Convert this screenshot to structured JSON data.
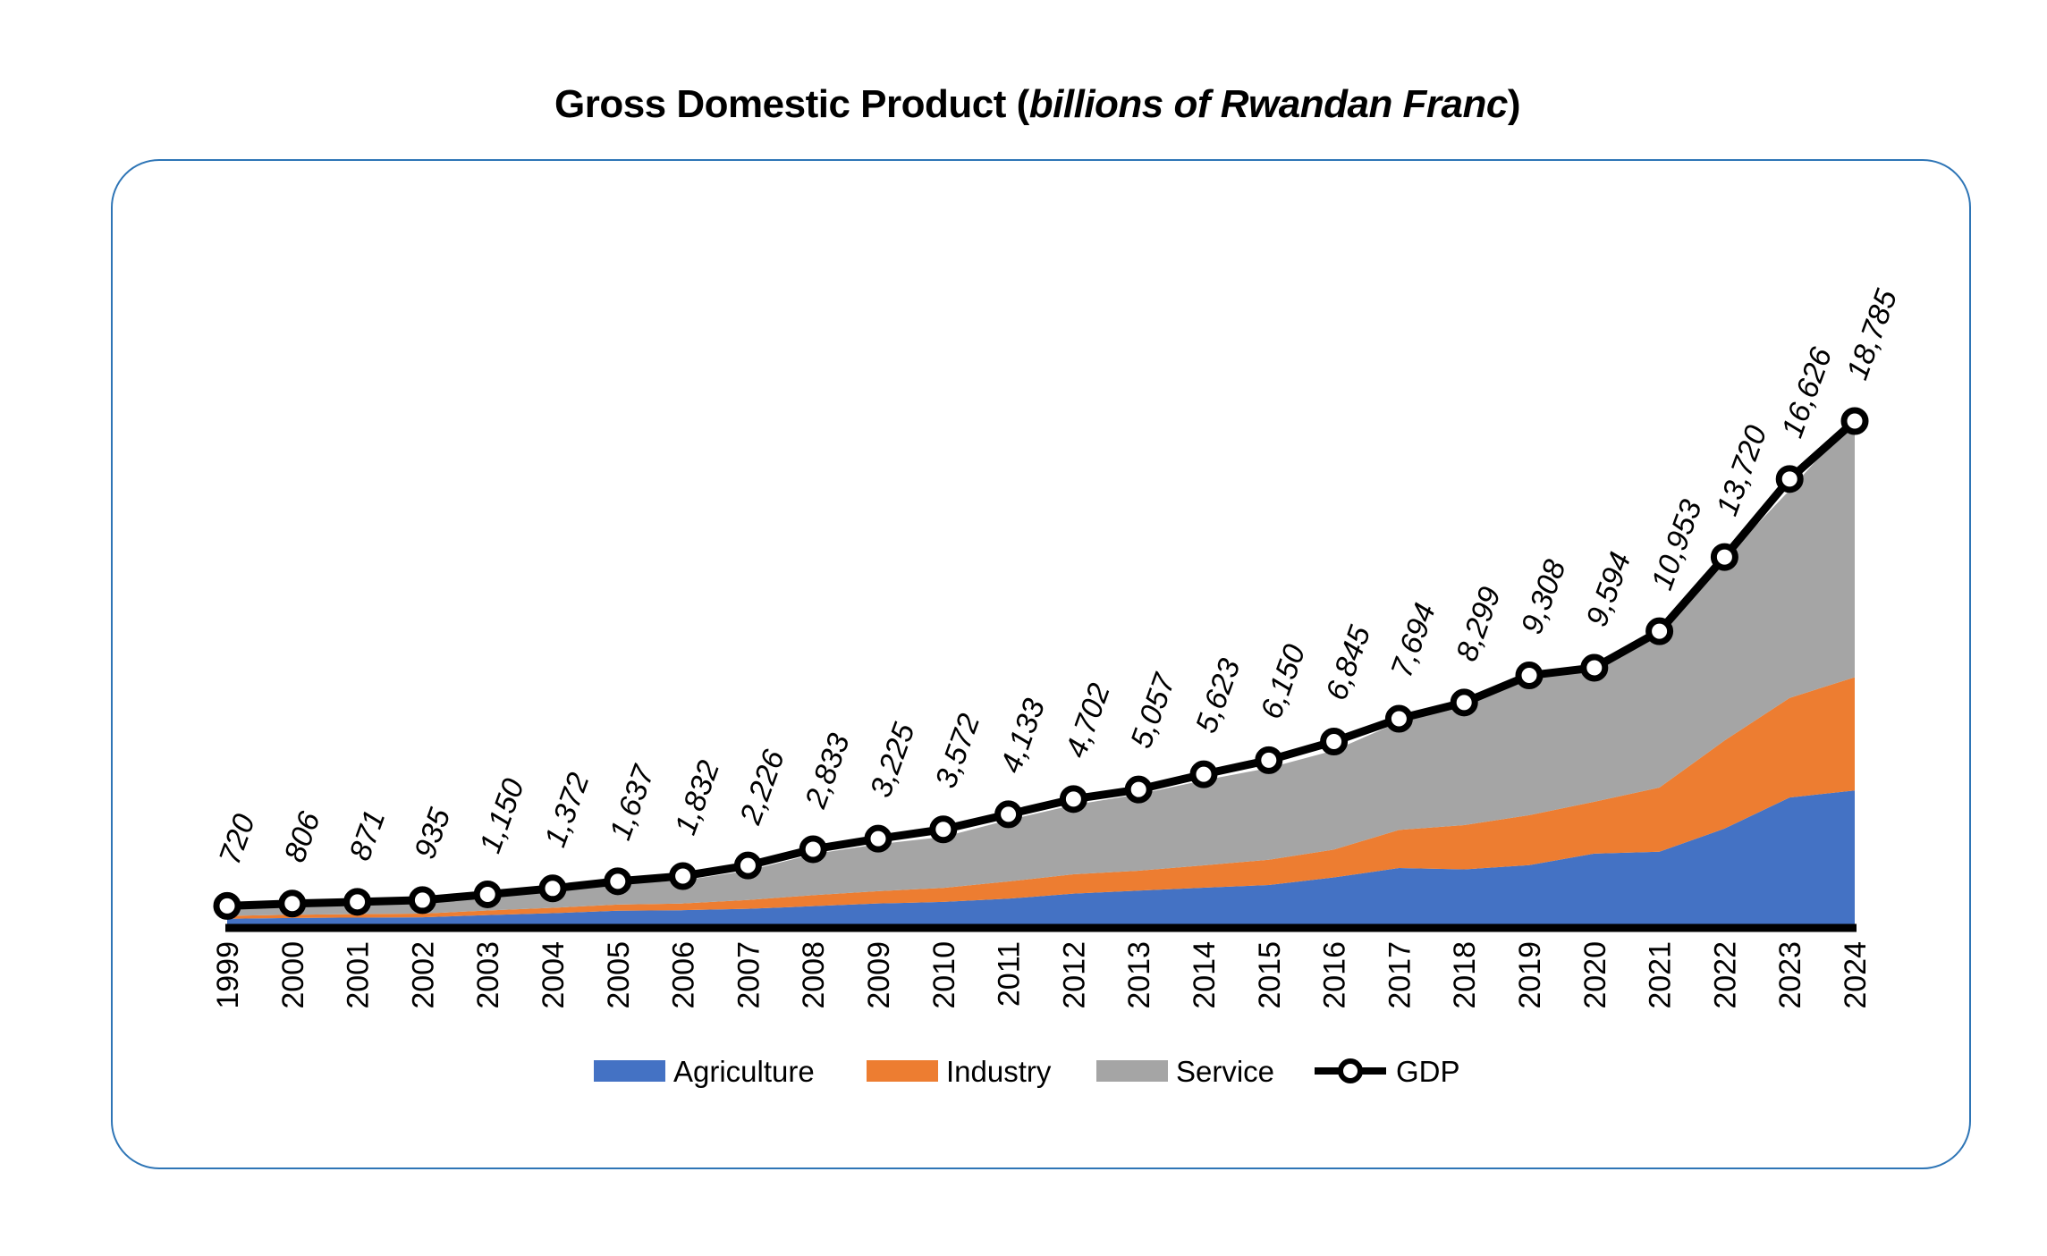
{
  "chart_data": {
    "type": "area",
    "title_main": "Gross Domestic Product (",
    "title_unit": "billions of Rwandan Franc",
    "title_close": ")",
    "xlabel": "",
    "ylabel": "",
    "ylim": [
      0,
      18785
    ],
    "grid": false,
    "legend_placement": "bottom",
    "categories": [
      "1999",
      "2000",
      "2001",
      "2002",
      "2003",
      "2004",
      "2005",
      "2006",
      "2007",
      "2008",
      "2009",
      "2010",
      "2011",
      "2012",
      "2013",
      "2014",
      "2015",
      "2016",
      "2017",
      "2018",
      "2019",
      "2020",
      "2021",
      "2022",
      "2023",
      "2024"
    ],
    "series": [
      {
        "name": "Agriculture",
        "kind": "stacked-area",
        "color": "#4472c4",
        "values": [
          240,
          270,
          285,
          295,
          380,
          450,
          540,
          560,
          610,
          710,
          810,
          870,
          990,
          1180,
          1290,
          1400,
          1500,
          1780,
          2130,
          2080,
          2240,
          2670,
          2740,
          3600,
          4760,
          5020
        ]
      },
      {
        "name": "Industry",
        "kind": "stacked-area",
        "color": "#ed7d31",
        "values": [
          110,
          120,
          130,
          140,
          170,
          200,
          230,
          250,
          330,
          410,
          460,
          520,
          640,
          720,
          740,
          830,
          940,
          1040,
          1420,
          1650,
          1860,
          1930,
          2390,
          3280,
          3710,
          4220
        ]
      },
      {
        "name": "Service",
        "kind": "stacked-area",
        "color": "#a5a5a5",
        "values": [
          300,
          340,
          380,
          420,
          520,
          640,
          760,
          860,
          1090,
          1530,
          1750,
          1900,
          2290,
          2580,
          2850,
          3170,
          3420,
          3690,
          4020,
          4400,
          5180,
          5060,
          5650,
          6770,
          7740,
          9670
        ]
      },
      {
        "name": "GDP",
        "kind": "line",
        "color": "#000000",
        "values": [
          720,
          806,
          871,
          935,
          1150,
          1372,
          1637,
          1832,
          2226,
          2833,
          3225,
          3572,
          4133,
          4702,
          5057,
          5623,
          6150,
          6845,
          7694,
          8299,
          9308,
          9594,
          10953,
          13720,
          16626,
          18785
        ],
        "labels": [
          "720",
          "806",
          "871",
          "935",
          "1,150",
          "1,372",
          "1,637",
          "1,832",
          "2,226",
          "2,833",
          "3,225",
          "3,572",
          "4,133",
          "4,702",
          "5,057",
          "5,623",
          "6,150",
          "6,845",
          "7,694",
          "8,299",
          "9,308",
          "9,594",
          "10,953",
          "13,720",
          "16,626",
          "18,785"
        ]
      }
    ]
  }
}
